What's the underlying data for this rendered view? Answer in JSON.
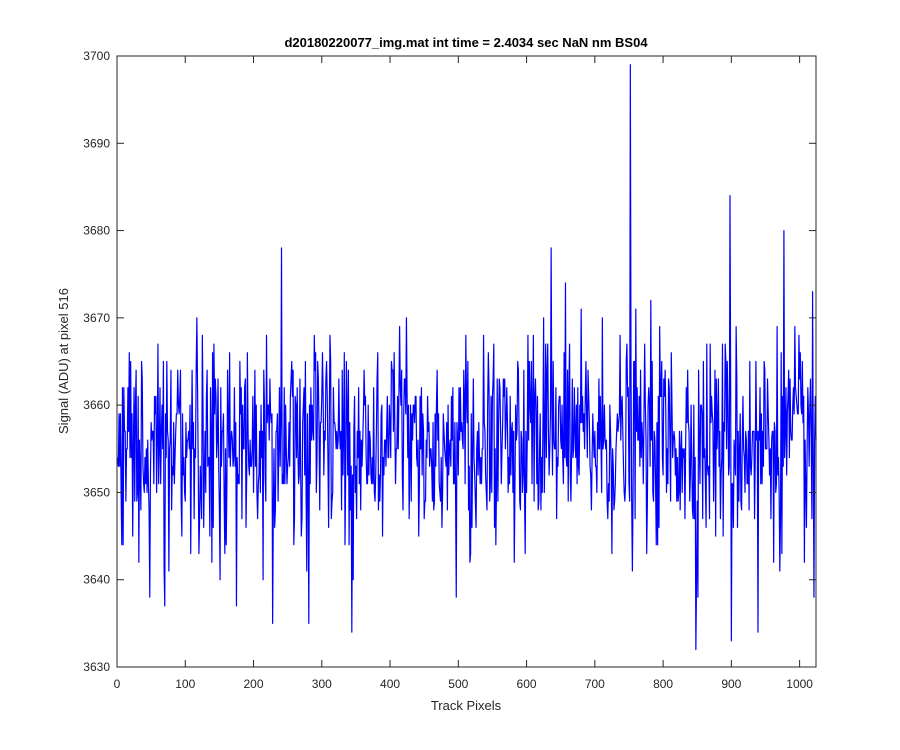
{
  "chart_data": {
    "type": "line",
    "title": "d20180220077_img.mat int time = 2.4034 sec  NaN nm BS04",
    "xlabel": "Track Pixels",
    "ylabel": "Signal (ADU) at pixel 516",
    "xlim": [
      0,
      1024
    ],
    "ylim": [
      3630,
      3700
    ],
    "xticks": [
      0,
      100,
      200,
      300,
      400,
      500,
      600,
      700,
      800,
      900,
      1000
    ],
    "yticks": [
      3630,
      3640,
      3650,
      3660,
      3670,
      3680,
      3690,
      3700
    ],
    "xtick_labels": [
      "0",
      "100",
      "200",
      "300",
      "400",
      "500",
      "600",
      "700",
      "800",
      "900",
      "1000"
    ],
    "ytick_labels": [
      "3630",
      "3640",
      "3650",
      "3660",
      "3670",
      "3680",
      "3690",
      "3700"
    ],
    "grid": false,
    "legend": "none",
    "series": [
      {
        "color": "#0000ff",
        "n_points": 1024,
        "mean": 3656,
        "stdev": 6,
        "notable_points": [
          {
            "x": 752,
            "y": 3699
          },
          {
            "x": 898,
            "y": 3684
          },
          {
            "x": 241,
            "y": 3678
          },
          {
            "x": 636,
            "y": 3678
          },
          {
            "x": 977,
            "y": 3680
          },
          {
            "x": 848,
            "y": 3632
          },
          {
            "x": 900,
            "y": 3633
          },
          {
            "x": 344,
            "y": 3634
          },
          {
            "x": 228,
            "y": 3635
          },
          {
            "x": 281,
            "y": 3635
          },
          {
            "x": 939,
            "y": 3634
          },
          {
            "x": 48,
            "y": 3638
          },
          {
            "x": 497,
            "y": 3638
          },
          {
            "x": 1021,
            "y": 3638
          }
        ]
      }
    ]
  },
  "colors": {
    "line": "#0000ff",
    "axes": "#262626",
    "background": "#ffffff"
  }
}
